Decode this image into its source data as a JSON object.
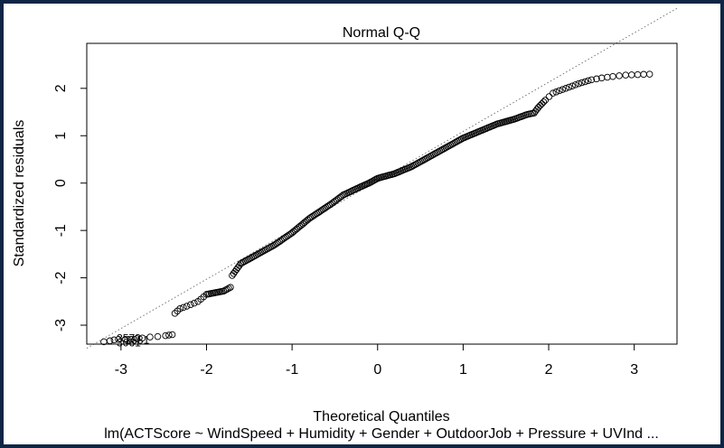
{
  "chart_data": {
    "type": "scatter",
    "title": "Normal Q-Q",
    "xlabel": "Theoretical Quantiles",
    "ylabel": "Standardized residuals",
    "subtitle": "lm(ACTScore ~ WindSpeed + Humidity + Gender + OutdoorJob + Pressure + UVInd ...",
    "xlim": [
      -3.4,
      3.5
    ],
    "ylim": [
      -3.4,
      2.95
    ],
    "xticks": [
      -3,
      -2,
      -1,
      0,
      1,
      2,
      3
    ],
    "yticks": [
      -3,
      -2,
      -1,
      0,
      1,
      2
    ],
    "reference_line": {
      "slope": 1.04,
      "intercept": 0.05,
      "style": "dotted"
    },
    "point_labels": [
      {
        "text": "3573",
        "x": -3.05,
        "y": -3.28
      },
      {
        "text": "2881",
        "x": -2.95,
        "y": -3.31
      },
      {
        "text": "3061",
        "x": -3.05,
        "y": -3.37
      }
    ],
    "quantile_curve": [
      [
        -3.2,
        -3.35
      ],
      [
        -3.13,
        -3.33
      ],
      [
        -3.08,
        -3.31
      ],
      [
        -3.03,
        -3.3
      ],
      [
        -2.95,
        -3.3
      ],
      [
        -2.88,
        -3.3
      ],
      [
        -2.75,
        -3.27
      ],
      [
        -2.66,
        -3.25
      ],
      [
        -2.57,
        -3.24
      ],
      [
        -2.48,
        -3.22
      ],
      [
        -2.4,
        -3.2
      ],
      [
        -2.37,
        -2.75
      ],
      [
        -2.31,
        -2.65
      ],
      [
        -2.23,
        -2.6
      ],
      [
        -2.1,
        -2.5
      ],
      [
        -2.0,
        -2.35
      ],
      [
        -1.8,
        -2.28
      ],
      [
        -1.72,
        -2.2
      ],
      [
        -1.7,
        -1.95
      ],
      [
        -1.6,
        -1.7
      ],
      [
        -1.4,
        -1.5
      ],
      [
        -1.2,
        -1.3
      ],
      [
        -1.0,
        -1.05
      ],
      [
        -0.8,
        -0.75
      ],
      [
        -0.55,
        -0.45
      ],
      [
        -0.4,
        -0.25
      ],
      [
        -0.2,
        -0.08
      ],
      [
        -0.1,
        0.0
      ],
      [
        0.0,
        0.1
      ],
      [
        0.2,
        0.2
      ],
      [
        0.4,
        0.35
      ],
      [
        0.6,
        0.55
      ],
      [
        0.8,
        0.75
      ],
      [
        1.0,
        0.95
      ],
      [
        1.2,
        1.1
      ],
      [
        1.4,
        1.25
      ],
      [
        1.6,
        1.35
      ],
      [
        1.75,
        1.45
      ],
      [
        1.83,
        1.48
      ],
      [
        1.88,
        1.6
      ],
      [
        1.96,
        1.75
      ],
      [
        2.05,
        1.9
      ],
      [
        2.2,
        2.0
      ],
      [
        2.35,
        2.1
      ],
      [
        2.5,
        2.18
      ],
      [
        2.62,
        2.22
      ],
      [
        2.75,
        2.25
      ],
      [
        2.9,
        2.28
      ],
      [
        3.18,
        2.3
      ]
    ]
  },
  "colors": {
    "background": "#0f2545",
    "panel": "#ffffff",
    "points": "#000000",
    "reference_line": "#777777"
  }
}
